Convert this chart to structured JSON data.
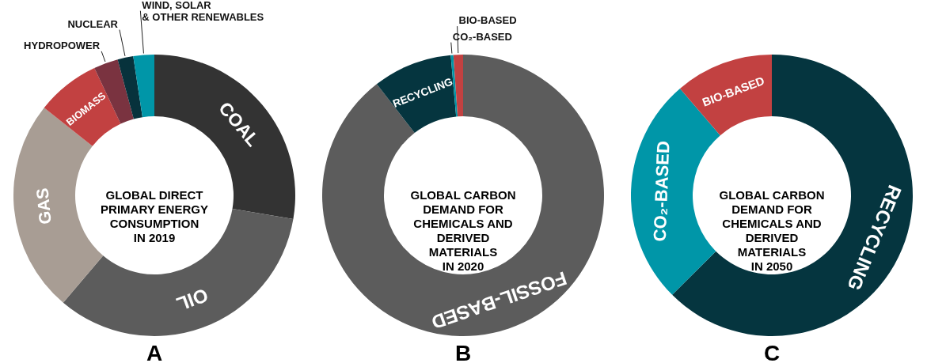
{
  "chart_data": [
    {
      "type": "donut",
      "title": "A",
      "annotations": [
        "GLOBAL DIRECT\nPRIMARY ENERGY\nCONSUMPTION\nIN 2019"
      ],
      "categories": [
        "COAL",
        "OIL",
        "GAS",
        "BIOMASS",
        "HYDROPOWER",
        "NUCLEAR",
        "WIND, SOLAR\n& OTHER RENEWABLES"
      ],
      "values": [
        27.7,
        33.5,
        24.5,
        7.3,
        2.8,
        1.8,
        2.4
      ],
      "colors": [
        "#333333",
        "#5c5c5c",
        "#a89d94",
        "#c24141",
        "#7a3340",
        "#07323c",
        "#0096a8"
      ]
    },
    {
      "type": "donut",
      "title": "B",
      "annotations": [
        "GLOBAL CARBON\nDEMAND FOR\nCHEMICALS AND\nDERIVED\nMATERIALS\nIN 2020"
      ],
      "categories": [
        "FOSSIL-BASED",
        "RECYCLING",
        "CO₂-BASED",
        "BIO-BASED"
      ],
      "values": [
        89.5,
        9.1,
        0.3,
        1.1
      ],
      "colors": [
        "#5c5c5c",
        "#05353f",
        "#0096a8",
        "#c24141"
      ]
    },
    {
      "type": "donut",
      "title": "C",
      "annotations": [
        "GLOBAL CARBON\nDEMAND FOR\nCHEMICALS AND\nDERIVED\nMATERIALS\nIN 2050"
      ],
      "categories": [
        "RECYCLING",
        "CO₂-BASED",
        "BIO-BASED"
      ],
      "values": [
        62.5,
        26.2,
        11.3
      ],
      "colors": [
        "#05353f",
        "#0096a8",
        "#c24141"
      ]
    }
  ]
}
